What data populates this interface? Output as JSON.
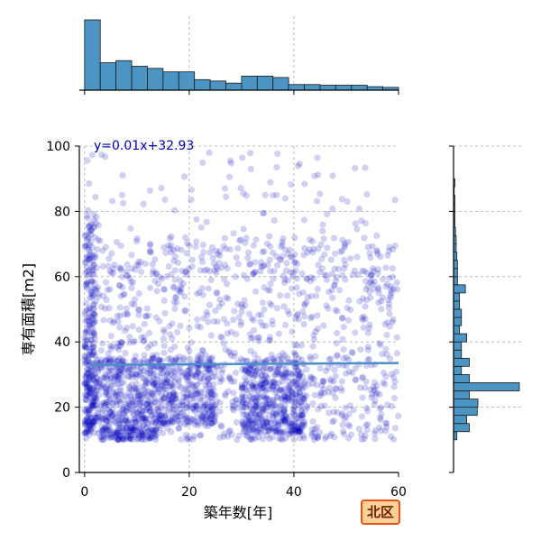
{
  "badge_label": "北区",
  "chart_data": {
    "type": "scatter",
    "xlabel": "築年数[年]",
    "ylabel": "専有面積[m2]",
    "xlim": [
      -1,
      60
    ],
    "ylim": [
      0,
      100
    ],
    "x_ticks": [
      0,
      20,
      40,
      60
    ],
    "y_ticks": [
      0,
      20,
      40,
      60,
      80,
      100
    ],
    "grid": true,
    "point_color": "#0000bb",
    "line_color": "#4a90c8",
    "hist_color": "#4c94c4",
    "regression": {
      "label": "y=0.01x+32.93",
      "slope": 0.01,
      "intercept": 32.93
    },
    "clusters": [
      {
        "x": [
          0,
          60
        ],
        "y": [
          10,
          72
        ],
        "n": 1100
      },
      {
        "x": [
          0,
          25
        ],
        "y": [
          15,
          35
        ],
        "n": 650
      },
      {
        "x": [
          30,
          42
        ],
        "y": [
          12,
          35
        ],
        "n": 400
      },
      {
        "x": [
          0,
          2
        ],
        "y": [
          12,
          80
        ],
        "n": 200
      },
      {
        "x": [
          3,
          14
        ],
        "y": [
          10,
          14
        ],
        "n": 120
      },
      {
        "x": [
          0,
          60
        ],
        "y": [
          60,
          98
        ],
        "n": 140
      }
    ],
    "x_hist": {
      "bin_edges": [
        0,
        3,
        6,
        9,
        12,
        15,
        18,
        21,
        24,
        27,
        30,
        33,
        36,
        39,
        42,
        45,
        48,
        51,
        54,
        57,
        60
      ],
      "heights": [
        1.0,
        0.39,
        0.42,
        0.34,
        0.31,
        0.26,
        0.26,
        0.15,
        0.13,
        0.1,
        0.2,
        0.2,
        0.18,
        0.08,
        0.08,
        0.07,
        0.07,
        0.07,
        0.05,
        0.04
      ]
    },
    "y_hist": {
      "bin_edges": [
        10,
        12.5,
        15,
        17.5,
        20,
        22.5,
        25,
        27.5,
        30,
        32.5,
        35,
        37.5,
        40,
        42.5,
        45,
        47.5,
        50,
        52.5,
        55,
        57.5,
        60,
        62.5,
        65,
        67.5,
        70,
        72.5,
        75,
        77.5,
        80,
        82.5,
        85,
        87.5,
        90
      ],
      "heights": [
        0.05,
        0.24,
        0.2,
        0.36,
        0.37,
        0.24,
        1.0,
        0.24,
        0.12,
        0.24,
        0.12,
        0.12,
        0.2,
        0.09,
        0.12,
        0.12,
        0.09,
        0.09,
        0.18,
        0.06,
        0.06,
        0.06,
        0.05,
        0.04,
        0.04,
        0.03,
        0.02,
        0.02,
        0.02,
        0.02,
        0.01,
        0.02
      ]
    }
  }
}
